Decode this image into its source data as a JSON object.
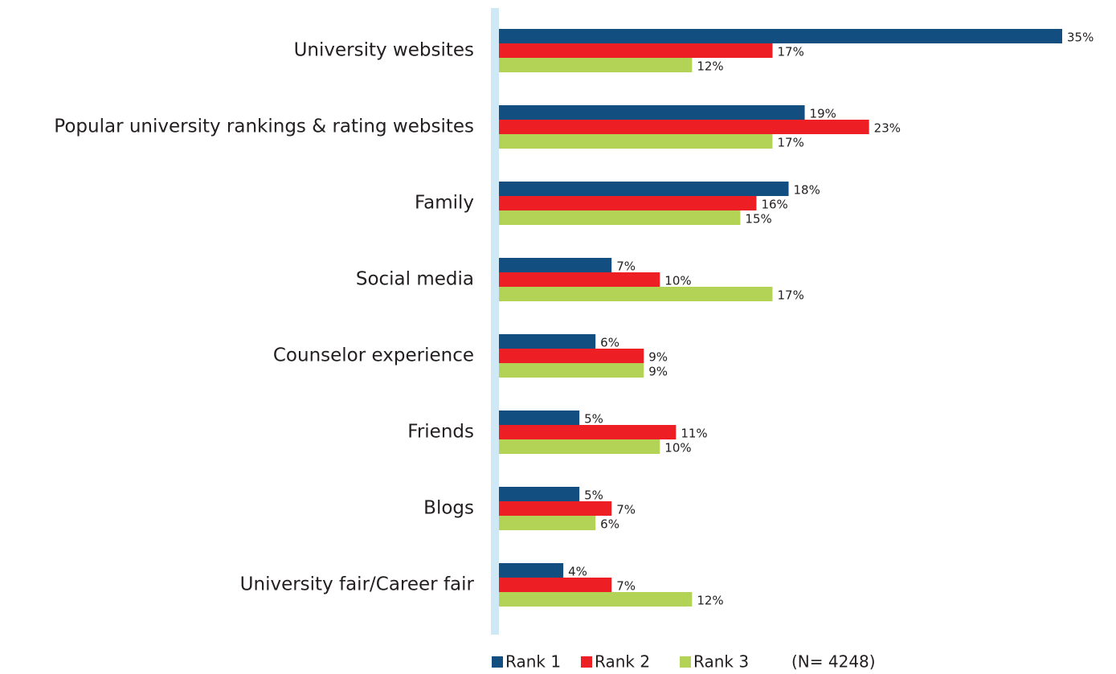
{
  "chart_data": {
    "type": "bar",
    "orientation": "horizontal",
    "categories": [
      "University websites",
      "Popular university rankings & rating websites",
      "Family",
      "Social media",
      "Counselor experience",
      "Friends",
      "Blogs",
      "University fair/Career fair"
    ],
    "series": [
      {
        "name": "Rank 1",
        "color": "#124e80",
        "values": [
          35,
          19,
          18,
          7,
          6,
          5,
          5,
          4
        ],
        "value_labels": [
          "35%",
          "19%",
          "18%",
          "7%",
          "6%",
          "5%",
          "5%",
          "4%"
        ]
      },
      {
        "name": "Rank 2",
        "color": "#ed1f24",
        "values": [
          17,
          23,
          16,
          10,
          9,
          11,
          7,
          7
        ],
        "value_labels": [
          "17%",
          "23%",
          "16%",
          "10%",
          "9%",
          "11%",
          "7%",
          "7%"
        ]
      },
      {
        "name": "Rank 3",
        "color": "#b2d356",
        "values": [
          12,
          17,
          15,
          17,
          9,
          10,
          6,
          12
        ],
        "value_labels": [
          "12%",
          "17%",
          "15%",
          "17%",
          "9%",
          "10%",
          "6%",
          "12%"
        ]
      }
    ],
    "note": "(N= 4248)",
    "legend": "bottom"
  }
}
